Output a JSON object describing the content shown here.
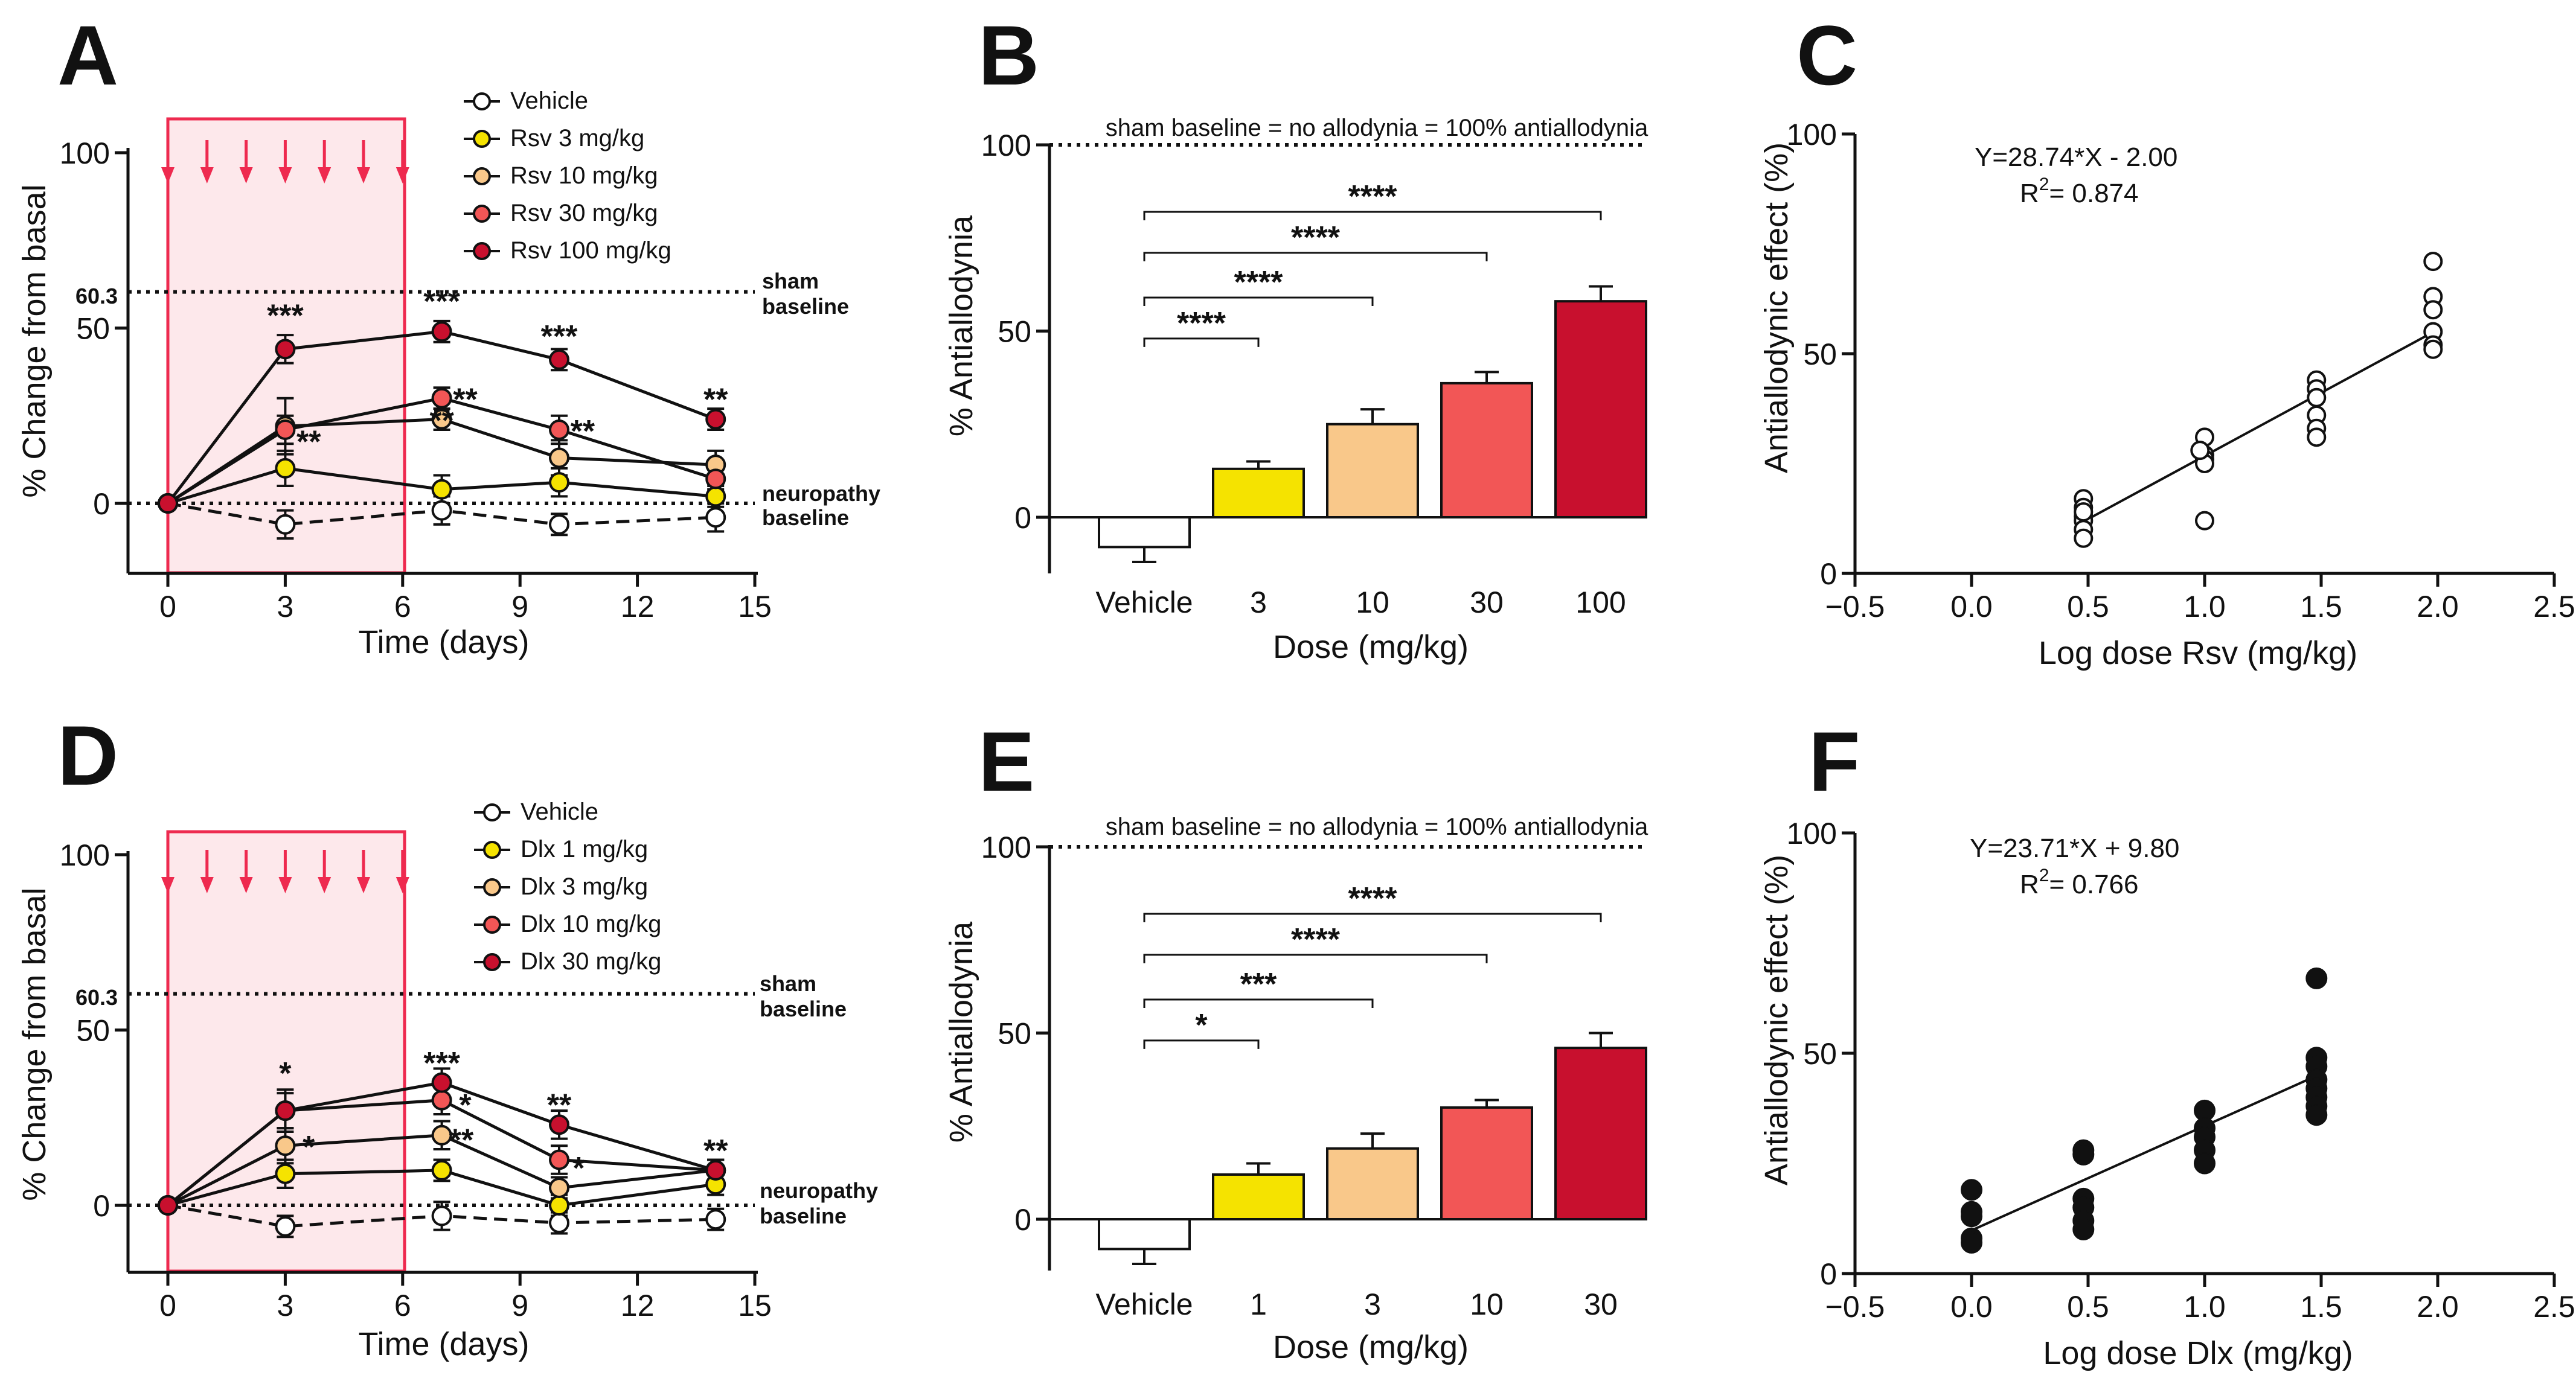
{
  "panels": {
    "A": {
      "letter": "A",
      "ylabel": "% Change from basal",
      "xlabel": "Time (days)",
      "sham_value_label": "60.3",
      "sham_label_1": "sham",
      "sham_label_2": "baseline",
      "neuro_label_1": "neuropathy",
      "neuro_label_2": "baseline",
      "legend": [
        "Vehicle",
        "Rsv    3 mg/kg",
        "Rsv  10 mg/kg",
        "Rsv  30 mg/kg",
        "Rsv 100 mg/kg"
      ],
      "stars": [
        {
          "day": 3,
          "value": 54,
          "text": "***"
        },
        {
          "day": 7,
          "value": 58,
          "text": "***"
        },
        {
          "day": 10,
          "value": 48,
          "text": "***"
        },
        {
          "day": 14,
          "value": 30,
          "text": "**"
        },
        {
          "day": 7.6,
          "value": 30,
          "text": "**"
        },
        {
          "day": 7.0,
          "value": 24,
          "text": "**"
        },
        {
          "day": 3.6,
          "value": 18,
          "text": "**"
        },
        {
          "day": 10.6,
          "value": 21,
          "text": "**"
        }
      ]
    },
    "B": {
      "letter": "B",
      "ylabel": "% Antiallodynia",
      "xlabel": "Dose (mg/kg)",
      "note": "sham baseline =  no allodynia =  100% antiallodynia",
      "brackets": [
        "****",
        "****",
        "****",
        "****"
      ]
    },
    "C": {
      "letter": "C",
      "ylabel": "Antiallodynic effect (%)",
      "xlabel": "Log dose Rsv (mg/kg)",
      "equation": "Y=28.74*X - 2.00",
      "r2_prefix": "R",
      "r2_sup": "2",
      "r2_value": "= 0.874"
    },
    "D": {
      "letter": "D",
      "ylabel": "% Change from basal",
      "xlabel": "Time (days)",
      "sham_value_label": "60.3",
      "sham_label_1": "sham",
      "sham_label_2": "baseline",
      "neuro_label_1": "neuropathy",
      "neuro_label_2": "baseline",
      "legend": [
        "Vehicle",
        "Dlx   1 mg/kg",
        "Dlx   3 mg/kg",
        "Dlx 10 mg/kg",
        "Dlx 30 mg/kg"
      ],
      "stars": [
        {
          "day": 3,
          "value": 38,
          "text": "*"
        },
        {
          "day": 3.6,
          "value": 17,
          "text": "*"
        },
        {
          "day": 7,
          "value": 41,
          "text": "***"
        },
        {
          "day": 7.6,
          "value": 29,
          "text": "*"
        },
        {
          "day": 7.5,
          "value": 19,
          "text": "**"
        },
        {
          "day": 10,
          "value": 29,
          "text": "**"
        },
        {
          "day": 10.5,
          "value": 11,
          "text": "*"
        },
        {
          "day": 14,
          "value": 16,
          "text": "**"
        }
      ]
    },
    "E": {
      "letter": "E",
      "ylabel": "% Antiallodynia",
      "xlabel": "Dose (mg/kg)",
      "note": "sham baseline =  no allodynia =  100% antiallodynia",
      "brackets": [
        "*",
        "***",
        "****",
        "****"
      ]
    },
    "F": {
      "letter": "F",
      "ylabel": "Antiallodynic effect (%)",
      "xlabel": "Log dose Dlx (mg/kg)",
      "equation": "Y=23.71*X + 9.80",
      "r2_prefix": "R",
      "r2_sup": "2",
      "r2_value": "= 0.766"
    }
  },
  "colors": {
    "vehicle": "#ffffff",
    "low": "#f5e300",
    "mid": "#f9c88a",
    "high": "#f25656",
    "top": "#c8102e",
    "red": "#ee2a4f",
    "shade": "#fde8eb"
  },
  "chart_data": [
    {
      "id": "A",
      "type": "line",
      "title": "",
      "xlabel": "Time (days)",
      "ylabel": "% Change from basal",
      "xlim": [
        0,
        15
      ],
      "ylim": [
        -15,
        105
      ],
      "xticks": [
        0,
        3,
        6,
        9,
        12,
        15
      ],
      "yticks": [
        0,
        50,
        100
      ],
      "dosing_days": [
        0,
        1,
        2,
        3,
        4,
        5,
        6
      ],
      "sham_baseline": 60.3,
      "neuropathy_baseline": 0,
      "x": [
        0,
        3,
        7,
        10,
        14
      ],
      "series": [
        {
          "name": "Vehicle",
          "color_key": "vehicle",
          "dashed": true,
          "values": [
            0,
            -6,
            -2,
            -6,
            -4
          ],
          "errors": [
            0,
            4,
            4,
            3,
            4
          ]
        },
        {
          "name": "Rsv 3 mg/kg",
          "color_key": "low",
          "values": [
            0,
            10,
            4,
            6,
            2
          ],
          "errors": [
            0,
            5,
            4,
            4,
            3
          ]
        },
        {
          "name": "Rsv 10 mg/kg",
          "color_key": "mid",
          "values": [
            0,
            22,
            24,
            13,
            11
          ],
          "errors": [
            0,
            8,
            3,
            5,
            4
          ]
        },
        {
          "name": "Rsv 30 mg/kg",
          "color_key": "high",
          "values": [
            0,
            21,
            30,
            21,
            7
          ],
          "errors": [
            0,
            4,
            3,
            4,
            3
          ]
        },
        {
          "name": "Rsv 100 mg/kg",
          "color_key": "top",
          "values": [
            0,
            44,
            49,
            41,
            24
          ],
          "errors": [
            0,
            4,
            3,
            3,
            3
          ]
        }
      ]
    },
    {
      "id": "B",
      "type": "bar",
      "xlabel": "Dose (mg/kg)",
      "ylabel": "% Antiallodynia",
      "ylim": [
        -15,
        100
      ],
      "yticks": [
        0,
        50,
        100
      ],
      "reference_line": 100,
      "categories": [
        "Vehicle",
        "3",
        "10",
        "30",
        "100"
      ],
      "values": [
        -8,
        13,
        25,
        36,
        58
      ],
      "errors": [
        4,
        2,
        4,
        3,
        4
      ],
      "color_keys": [
        "vehicle",
        "low",
        "mid",
        "high",
        "top"
      ],
      "bracket_levels": [
        48,
        59,
        71,
        82
      ]
    },
    {
      "id": "C",
      "type": "scatter",
      "xlabel": "Log dose Rsv (mg/kg)",
      "ylabel": "Antiallodynic effect (%)",
      "xlim": [
        -0.5,
        2.5
      ],
      "ylim": [
        0,
        100
      ],
      "xticks": [
        -0.5,
        0.0,
        0.5,
        1.0,
        1.5,
        2.0,
        2.5
      ],
      "xtick_labels": [
        "−0.5",
        "0.0",
        "0.5",
        "1.0",
        "1.5",
        "2.0",
        "2.5"
      ],
      "yticks": [
        0,
        50,
        100
      ],
      "filled": false,
      "x": [
        0.48,
        0.48,
        0.48,
        0.48,
        0.48,
        0.48,
        0.48,
        1.0,
        1.0,
        1.0,
        1.0,
        1.0,
        0.98,
        1.48,
        1.48,
        1.48,
        1.48,
        1.48,
        1.48,
        1.98,
        1.98,
        1.98,
        1.98,
        1.98,
        1.98
      ],
      "y": [
        17,
        15,
        13,
        12,
        10,
        8,
        14,
        31,
        27,
        26,
        25,
        12,
        28,
        44,
        42,
        36,
        33,
        31,
        40,
        71,
        63,
        60,
        55,
        52,
        51
      ],
      "fit": {
        "slope": 28.74,
        "intercept": -2.0,
        "x_range": [
          0.48,
          2.0
        ]
      }
    },
    {
      "id": "D",
      "type": "line",
      "xlabel": "Time (days)",
      "ylabel": "% Change from basal",
      "xlim": [
        0,
        15
      ],
      "ylim": [
        -15,
        105
      ],
      "xticks": [
        0,
        3,
        6,
        9,
        12,
        15
      ],
      "yticks": [
        0,
        50,
        100
      ],
      "dosing_days": [
        0,
        1,
        2,
        3,
        4,
        5,
        6
      ],
      "sham_baseline": 60.3,
      "neuropathy_baseline": 0,
      "x": [
        0,
        3,
        7,
        10,
        14
      ],
      "series": [
        {
          "name": "Vehicle",
          "color_key": "vehicle",
          "dashed": true,
          "values": [
            0,
            -6,
            -3,
            -5,
            -4
          ],
          "errors": [
            0,
            3,
            4,
            3,
            3
          ]
        },
        {
          "name": "Dlx 1 mg/kg",
          "color_key": "low",
          "values": [
            0,
            9,
            10,
            0,
            6
          ],
          "errors": [
            0,
            4,
            3,
            3,
            3
          ]
        },
        {
          "name": "Dlx 3 mg/kg",
          "color_key": "mid",
          "values": [
            0,
            17,
            20,
            5,
            10
          ],
          "errors": [
            0,
            5,
            4,
            3,
            3
          ]
        },
        {
          "name": "Dlx 10 mg/kg",
          "color_key": "high",
          "values": [
            0,
            27,
            30,
            13,
            10
          ],
          "errors": [
            0,
            6,
            4,
            4,
            3
          ]
        },
        {
          "name": "Dlx 30 mg/kg",
          "color_key": "top",
          "values": [
            0,
            27,
            35,
            23,
            10
          ],
          "errors": [
            0,
            5,
            4,
            4,
            3
          ]
        }
      ]
    },
    {
      "id": "E",
      "type": "bar",
      "xlabel": "Dose (mg/kg)",
      "ylabel": "% Antiallodynia",
      "ylim": [
        -15,
        100
      ],
      "yticks": [
        0,
        50,
        100
      ],
      "reference_line": 100,
      "categories": [
        "Vehicle",
        "1",
        "3",
        "10",
        "30"
      ],
      "values": [
        -8,
        12,
        19,
        30,
        46
      ],
      "errors": [
        4,
        3,
        4,
        2,
        4
      ],
      "color_keys": [
        "vehicle",
        "low",
        "mid",
        "high",
        "top"
      ],
      "bracket_levels": [
        48,
        59,
        71,
        82
      ]
    },
    {
      "id": "F",
      "type": "scatter",
      "xlabel": "Log dose Dlx (mg/kg)",
      "ylabel": "Antiallodynic effect (%)",
      "xlim": [
        -0.5,
        2.5
      ],
      "ylim": [
        0,
        100
      ],
      "xticks": [
        -0.5,
        0.0,
        0.5,
        1.0,
        1.5,
        2.0,
        2.5
      ],
      "xtick_labels": [
        "−0.5",
        "0.0",
        "0.5",
        "1.0",
        "1.5",
        "2.0",
        "2.5"
      ],
      "yticks": [
        0,
        50,
        100
      ],
      "filled": true,
      "x": [
        0,
        0,
        0,
        0,
        0,
        0.48,
        0.48,
        0.48,
        0.48,
        0.48,
        0.48,
        1.0,
        1.0,
        1.0,
        1.0,
        1.0,
        1.48,
        1.48,
        1.48,
        1.48,
        1.48,
        1.48,
        1.48,
        1.48
      ],
      "y": [
        19,
        14,
        13,
        8,
        7,
        28,
        27,
        17,
        15,
        12,
        10,
        37,
        33,
        31,
        28,
        25,
        67,
        49,
        47,
        44,
        42,
        40,
        38,
        36
      ],
      "fit": {
        "slope": 23.71,
        "intercept": 9.8,
        "x_range": [
          0,
          1.48
        ]
      }
    }
  ]
}
